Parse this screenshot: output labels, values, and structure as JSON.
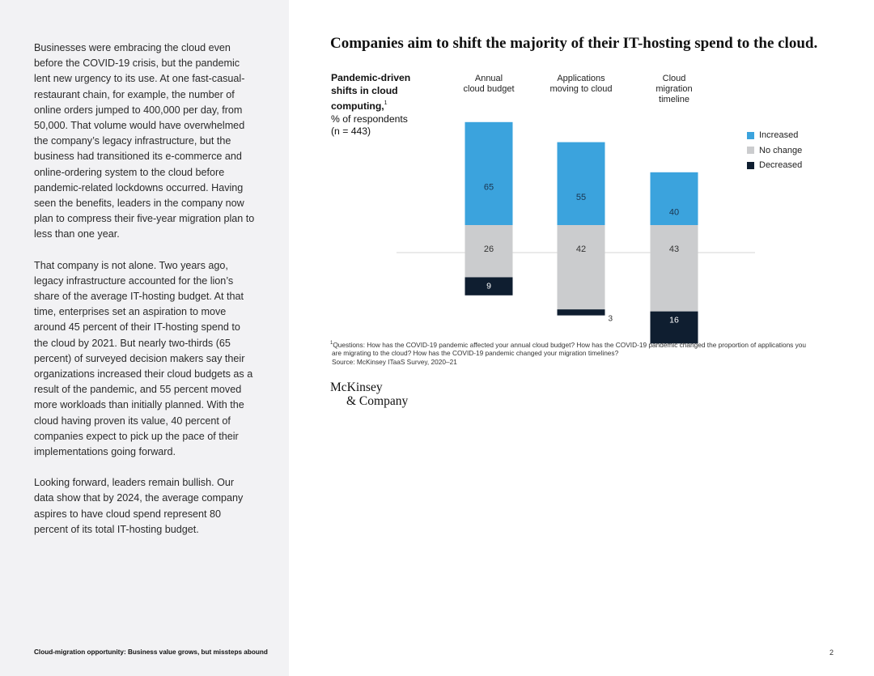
{
  "body": {
    "paragraphs": [
      "Businesses were embracing the cloud even before the COVID-19 crisis, but the pandemic lent new urgency to its use. At one fast-casual-restaurant chain, for example, the number of online orders jumped to 400,000 per day, from 50,000. That volume would have overwhelmed the company’s legacy infrastructure, but the business had transitioned its e-commerce and online-ordering system to the cloud before pandemic-related lockdowns occurred. Having seen the benefits, leaders in the company now plan to compress their five-year migration plan to less than one year.",
      "That company is not alone. Two years ago, legacy infrastructure accounted for the lion’s share of the average IT-hosting budget. At that time, enterprises set an aspiration to move around 45 percent of their IT-hosting spend to the cloud by 2021. But nearly two-thirds (65 percent) of surveyed decision makers say their organizations increased their cloud budgets as a result of the pandemic, and 55 percent moved more workloads than initially planned. With the cloud having proven its value, 40 percent of companies expect to pick up the pace of their implementations going forward.",
      "Looking forward, leaders remain bullish. Our data show that by 2024, the average company aspires to have cloud spend represent 80 percent of its total IT-hosting budget."
    ]
  },
  "footer": {
    "left": "Cloud-migration opportunity: Business value grows, but missteps abound",
    "page_number": "2"
  },
  "chart_data": {
    "type": "bar",
    "title": "Companies aim to shift the majority of their IT-hosting spend to the cloud.",
    "subtitle_bold": "Pandemic-driven shifts in cloud computing,",
    "subtitle_sup": "1",
    "subtitle_unit": "% of respondents",
    "subtitle_n": "(n = 443)",
    "categories": [
      "Annual cloud budget",
      "Applications moving to cloud",
      "Cloud migration timeline"
    ],
    "category_lines": [
      [
        "Annual",
        "cloud budget"
      ],
      [
        "Applications",
        "moving to cloud"
      ],
      [
        "Cloud",
        "migration",
        "timeline"
      ]
    ],
    "series": [
      {
        "name": "Increased",
        "values": [
          65,
          55,
          40
        ],
        "color": "#3ba3dd"
      },
      {
        "name": "No change",
        "values": [
          26,
          42,
          43
        ],
        "color": "#cbccce"
      },
      {
        "name": "Decreased",
        "values": [
          9,
          3,
          16
        ],
        "color": "#0f1e30"
      }
    ],
    "legend_placement": "right",
    "footnote_lines": [
      "Questions: How has the COVID-19 pandemic affected your annual cloud budget? How has the COVID-19 pandemic changed the proportion of applications you",
      "are migrating to the cloud? How has the COVID-19 pandemic changed your migration timelines?"
    ],
    "footnote_sup": "1",
    "source": "Source: McKinsey ITaaS Survey, 2020–21"
  },
  "logo": {
    "line1": "McKinsey",
    "line2": "& Company"
  },
  "colors": {
    "sidebar": "#f2f2f4",
    "increased": "#3ba3dd",
    "no_change": "#cbccce",
    "decreased": "#0f1e30"
  }
}
